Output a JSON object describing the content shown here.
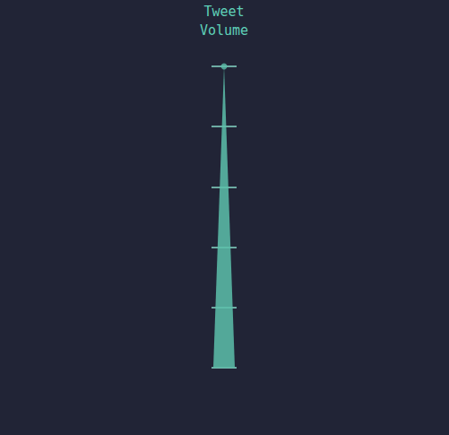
{
  "chart_data": {
    "type": "pictorialBar",
    "categories": [
      "Tweet Volume"
    ],
    "values": [
      100
    ],
    "color": "#5cbfaa",
    "ylim": [
      0,
      100
    ],
    "yticks": [
      0,
      20,
      40,
      60,
      80,
      100
    ],
    "grid": true,
    "tick_labels": "x",
    "marker": "triangle"
  }
}
